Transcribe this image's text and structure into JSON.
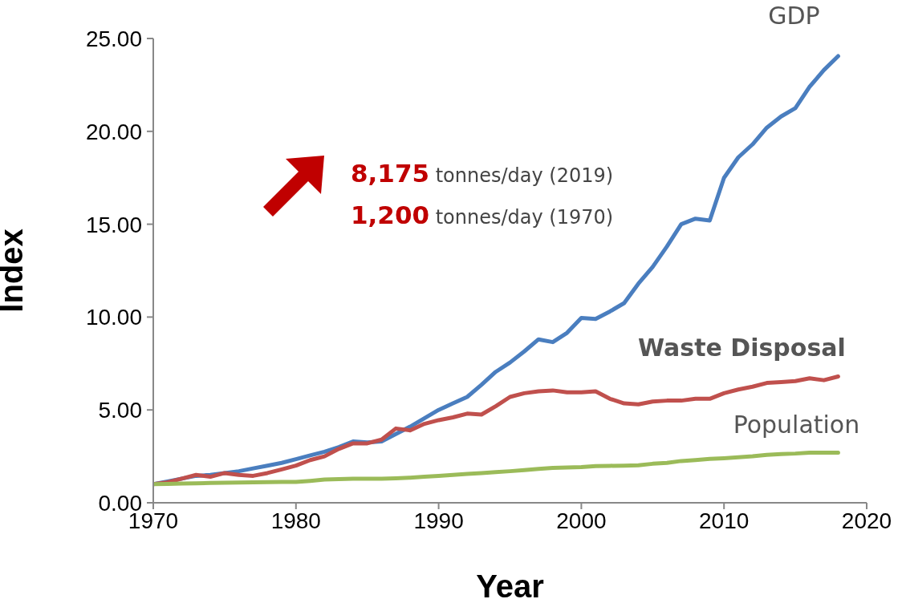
{
  "chart_data": {
    "type": "line",
    "xlabel": "Year",
    "ylabel": "Index",
    "x": [
      1970,
      1971,
      1972,
      1973,
      1974,
      1975,
      1976,
      1977,
      1978,
      1979,
      1980,
      1981,
      1982,
      1983,
      1984,
      1985,
      1986,
      1987,
      1988,
      1989,
      1990,
      1991,
      1992,
      1993,
      1994,
      1995,
      1996,
      1997,
      1998,
      1999,
      2000,
      2001,
      2002,
      2003,
      2004,
      2005,
      2006,
      2007,
      2008,
      2009,
      2010,
      2011,
      2012,
      2013,
      2014,
      2015,
      2016,
      2017,
      2018
    ],
    "series": [
      {
        "name": "GDP",
        "color": "#4a7ebf",
        "values": [
          1.0,
          1.15,
          1.3,
          1.45,
          1.5,
          1.6,
          1.7,
          1.85,
          2.0,
          2.15,
          2.35,
          2.55,
          2.75,
          3.0,
          3.3,
          3.25,
          3.3,
          3.7,
          4.1,
          4.55,
          5.0,
          5.35,
          5.7,
          6.35,
          7.05,
          7.55,
          8.15,
          8.8,
          8.65,
          9.15,
          9.95,
          9.9,
          10.3,
          10.75,
          11.8,
          12.7,
          13.8,
          15.0,
          15.3,
          15.2,
          17.5,
          18.6,
          19.3,
          20.2,
          20.8,
          21.25,
          22.4,
          23.3,
          24.05
        ]
      },
      {
        "name": "Waste Disposal",
        "color": "#c0504d",
        "values": [
          1.0,
          1.1,
          1.3,
          1.5,
          1.4,
          1.6,
          1.5,
          1.45,
          1.6,
          1.8,
          2.0,
          2.3,
          2.5,
          2.9,
          3.2,
          3.2,
          3.4,
          4.0,
          3.9,
          4.25,
          4.45,
          4.6,
          4.8,
          4.75,
          5.2,
          5.7,
          5.9,
          6.0,
          6.05,
          5.95,
          5.95,
          6.0,
          5.6,
          5.35,
          5.3,
          5.45,
          5.5,
          5.5,
          5.6,
          5.6,
          5.9,
          6.1,
          6.25,
          6.45,
          6.5,
          6.55,
          6.7,
          6.6,
          6.8
        ]
      },
      {
        "name": "Population",
        "color": "#9bbb59",
        "values": [
          1.0,
          1.02,
          1.04,
          1.05,
          1.07,
          1.08,
          1.09,
          1.1,
          1.11,
          1.12,
          1.12,
          1.18,
          1.25,
          1.27,
          1.3,
          1.3,
          1.3,
          1.32,
          1.35,
          1.4,
          1.45,
          1.5,
          1.55,
          1.6,
          1.65,
          1.7,
          1.76,
          1.82,
          1.88,
          1.9,
          1.92,
          1.98,
          1.99,
          2.0,
          2.02,
          2.1,
          2.15,
          2.25,
          2.3,
          2.36,
          2.4,
          2.45,
          2.5,
          2.58,
          2.62,
          2.65,
          2.7,
          2.7,
          2.7
        ]
      }
    ],
    "xlim": [
      1970,
      2020
    ],
    "xticks": [
      1970,
      1980,
      1990,
      2000,
      2010,
      2020
    ],
    "ylim": [
      0,
      25
    ],
    "yticks": [
      {
        "value": 0,
        "label": "0.00"
      },
      {
        "value": 5,
        "label": "5.00"
      },
      {
        "value": 10,
        "label": "10.00"
      },
      {
        "value": 15,
        "label": "15.00"
      },
      {
        "value": 20,
        "label": "20.00"
      },
      {
        "value": 25,
        "label": "25.00"
      }
    ],
    "annotations": [
      "8,175 tonnes/day (2019)",
      "1,200 tonnes/day (1970)"
    ],
    "grid": false,
    "legend": false,
    "marker": "none",
    "line_style": "solid"
  }
}
